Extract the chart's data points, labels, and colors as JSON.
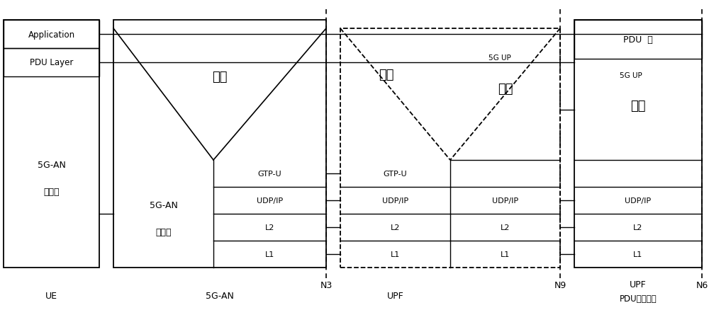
{
  "bg_color": "#ffffff",
  "lc": "#000000",
  "fig_width": 10.0,
  "fig_height": 4.39,
  "dpi": 100,
  "ue_label": "UE",
  "an_label": "5G-AN",
  "upf_label": "UPF",
  "upf_label2": "UPF",
  "upf2_anchor": "PDU会话锁点",
  "n3_label": "N3",
  "n9_label": "N9",
  "n6_label": "N6",
  "app_text": "Application",
  "pdu_layer_text": "PDU Layer",
  "ue_proto": "5G-AN\n协议层",
  "an_proto": "5G-AN\n协议层",
  "zhongji1": "中继",
  "zhongji2": "中继",
  "jiaonang1": "胶囊",
  "jiaonang2": "胶囊",
  "5gup": "5G UP",
  "pdu_ceng": "PDU  层",
  "layers_left_an": [
    "GTP-U",
    "UDP/IP",
    "L2",
    "L1"
  ],
  "layers_upf_left": [
    "GTP-U",
    "UDP/IP",
    "L2",
    "L1"
  ],
  "layers_upf_right": [
    "UDP/IP",
    "L2",
    "L1"
  ],
  "layers_upf2": [
    "UDP/IP",
    "L2",
    "L1"
  ]
}
